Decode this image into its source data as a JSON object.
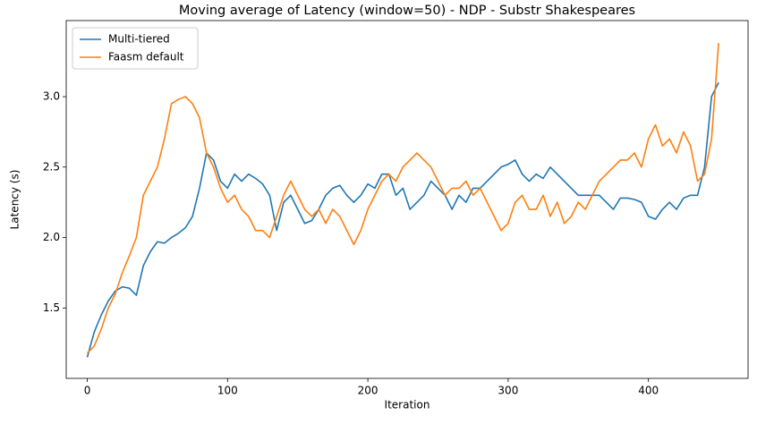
{
  "chart_data": {
    "type": "line",
    "title": "Moving average of Latency (window=50) - NDP - Substr Shakespeares",
    "xlabel": "Iteration",
    "ylabel": "Latency (s)",
    "x": [
      0,
      5,
      10,
      15,
      20,
      25,
      30,
      35,
      40,
      45,
      50,
      55,
      60,
      65,
      70,
      75,
      80,
      85,
      90,
      95,
      100,
      105,
      110,
      115,
      120,
      125,
      130,
      135,
      140,
      145,
      150,
      155,
      160,
      165,
      170,
      175,
      180,
      185,
      190,
      195,
      200,
      205,
      210,
      215,
      220,
      225,
      230,
      235,
      240,
      245,
      250,
      255,
      260,
      265,
      270,
      275,
      280,
      285,
      290,
      295,
      300,
      305,
      310,
      315,
      320,
      325,
      330,
      335,
      340,
      345,
      350,
      355,
      360,
      365,
      370,
      375,
      380,
      385,
      390,
      395,
      400,
      405,
      410,
      415,
      420,
      425,
      430,
      435,
      440,
      445,
      450
    ],
    "series": [
      {
        "name": "Multi-tiered",
        "color": "#1f77b4",
        "values": [
          1.15,
          1.33,
          1.45,
          1.55,
          1.62,
          1.65,
          1.64,
          1.59,
          1.8,
          1.9,
          1.97,
          1.96,
          2.0,
          2.03,
          2.07,
          2.15,
          2.35,
          2.6,
          2.55,
          2.4,
          2.35,
          2.45,
          2.4,
          2.45,
          2.42,
          2.38,
          2.3,
          2.05,
          2.25,
          2.3,
          2.2,
          2.1,
          2.12,
          2.2,
          2.3,
          2.35,
          2.37,
          2.3,
          2.25,
          2.3,
          2.38,
          2.35,
          2.45,
          2.45,
          2.3,
          2.35,
          2.2,
          2.25,
          2.3,
          2.4,
          2.35,
          2.3,
          2.2,
          2.3,
          2.25,
          2.35,
          2.35,
          2.4,
          2.45,
          2.5,
          2.52,
          2.55,
          2.45,
          2.4,
          2.45,
          2.42,
          2.5,
          2.45,
          2.4,
          2.35,
          2.3,
          2.3,
          2.3,
          2.3,
          2.25,
          2.2,
          2.28,
          2.28,
          2.27,
          2.25,
          2.15,
          2.13,
          2.2,
          2.25,
          2.2,
          2.28,
          2.3,
          2.3,
          2.5,
          3.0,
          3.1
        ]
      },
      {
        "name": "Faasm default",
        "color": "#ff7f0e",
        "values": [
          1.18,
          1.23,
          1.35,
          1.5,
          1.6,
          1.75,
          1.87,
          2.0,
          2.3,
          2.4,
          2.5,
          2.7,
          2.95,
          2.98,
          3.0,
          2.95,
          2.85,
          2.6,
          2.5,
          2.35,
          2.25,
          2.3,
          2.2,
          2.15,
          2.05,
          2.05,
          2.0,
          2.15,
          2.3,
          2.4,
          2.3,
          2.2,
          2.15,
          2.2,
          2.1,
          2.2,
          2.15,
          2.05,
          1.95,
          2.05,
          2.2,
          2.3,
          2.4,
          2.45,
          2.4,
          2.5,
          2.55,
          2.6,
          2.55,
          2.5,
          2.4,
          2.3,
          2.35,
          2.35,
          2.4,
          2.3,
          2.35,
          2.25,
          2.15,
          2.05,
          2.1,
          2.25,
          2.3,
          2.2,
          2.2,
          2.3,
          2.15,
          2.25,
          2.1,
          2.15,
          2.25,
          2.2,
          2.3,
          2.4,
          2.45,
          2.5,
          2.55,
          2.55,
          2.6,
          2.5,
          2.7,
          2.8,
          2.65,
          2.7,
          2.6,
          2.75,
          2.65,
          2.4,
          2.45,
          2.7,
          3.38
        ]
      }
    ],
    "xlim": [
      -15,
      471
    ],
    "xticks": [
      0,
      100,
      200,
      300,
      400
    ],
    "ylim": [
      1.0,
      3.54
    ],
    "yticks": [
      1.5,
      {
        "value": 2.0,
        "label": "2.0"
      },
      2.5,
      {
        "value": 3.0,
        "label": "3.0"
      }
    ],
    "legend": "upper left"
  }
}
